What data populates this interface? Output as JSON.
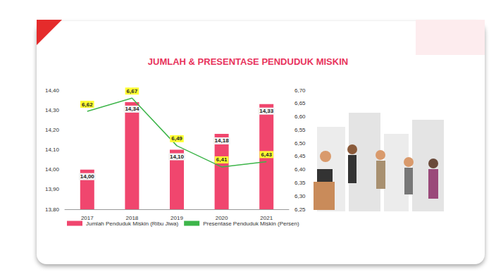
{
  "chart_data": {
    "type": "bar",
    "title": "JUMLAH & PRESENTASE PENDUDUK MISKIN",
    "categories": [
      "2017",
      "2018",
      "2019",
      "2020",
      "2021"
    ],
    "series": [
      {
        "name": "Jumlah Penduduk Miskin (Ribu Jiwa)",
        "type": "bar",
        "color": "#f0466e",
        "values": [
          14.0,
          14.34,
          14.1,
          14.18,
          14.33
        ],
        "value_labels": [
          "14,00",
          "14,34",
          "14,10",
          "14,18",
          "14,33"
        ]
      },
      {
        "name": "Presentase Penduduk Miskin (Persen)",
        "type": "line",
        "color": "#3db54a",
        "axis": "y2",
        "values": [
          6.62,
          6.67,
          6.49,
          6.41,
          6.43
        ],
        "value_labels": [
          "6,62",
          "6,67",
          "6,49",
          "6,41",
          "6,43"
        ]
      }
    ],
    "ylim": [
      13.8,
      14.4
    ],
    "yticks": [
      {
        "value": 13.8,
        "label": "13,80"
      },
      {
        "value": 13.9,
        "label": "13,90"
      },
      {
        "value": 14.0,
        "label": "14,00"
      },
      {
        "value": 14.1,
        "label": "14,10"
      },
      {
        "value": 14.2,
        "label": "14,20"
      },
      {
        "value": 14.3,
        "label": "14,30"
      },
      {
        "value": 14.4,
        "label": "14,40"
      }
    ],
    "y2lim": [
      6.25,
      6.7
    ],
    "y2ticks": [
      {
        "value": 6.25,
        "label": "6,25"
      },
      {
        "value": 6.3,
        "label": "6,30"
      },
      {
        "value": 6.35,
        "label": "6,35"
      },
      {
        "value": 6.4,
        "label": "6,40"
      },
      {
        "value": 6.45,
        "label": "6,45"
      },
      {
        "value": 6.5,
        "label": "6,50"
      },
      {
        "value": 6.55,
        "label": "6,55"
      },
      {
        "value": 6.6,
        "label": "6,60"
      },
      {
        "value": 6.65,
        "label": "6,65"
      },
      {
        "value": 6.7,
        "label": "6,70"
      }
    ],
    "data_labels": true,
    "grid": false,
    "legend": "bottom"
  }
}
